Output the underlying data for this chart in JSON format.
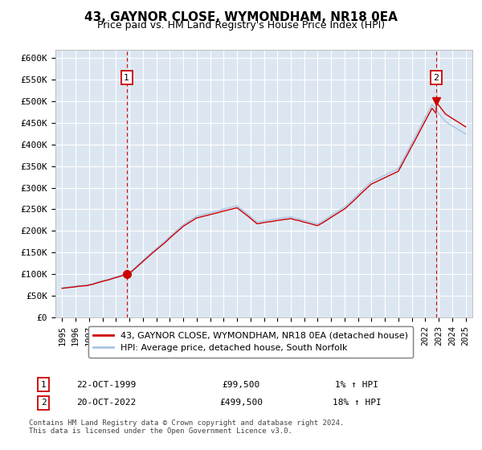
{
  "title": "43, GAYNOR CLOSE, WYMONDHAM, NR18 0EA",
  "subtitle": "Price paid vs. HM Land Registry's House Price Index (HPI)",
  "plot_bg_color": "#dce6f1",
  "ylim": [
    0,
    620000
  ],
  "yticks": [
    0,
    50000,
    100000,
    150000,
    200000,
    250000,
    300000,
    350000,
    400000,
    450000,
    500000,
    550000,
    600000
  ],
  "ytick_labels": [
    "£0",
    "£50K",
    "£100K",
    "£150K",
    "£200K",
    "£250K",
    "£300K",
    "£350K",
    "£400K",
    "£450K",
    "£500K",
    "£550K",
    "£600K"
  ],
  "hpi_color": "#aac4e0",
  "price_color": "#cc0000",
  "legend_house_label": "43, GAYNOR CLOSE, WYMONDHAM, NR18 0EA (detached house)",
  "legend_hpi_label": "HPI: Average price, detached house, South Norfolk",
  "annotation1_num": "1",
  "annotation1_date": "22-OCT-1999",
  "annotation1_price": "£99,500",
  "annotation1_hpi": "1% ↑ HPI",
  "annotation2_num": "2",
  "annotation2_date": "20-OCT-2022",
  "annotation2_price": "£499,500",
  "annotation2_hpi": "18% ↑ HPI",
  "footnote": "Contains HM Land Registry data © Crown copyright and database right 2024.\nThis data is licensed under the Open Government Licence v3.0.",
  "sale1_year": 1999.8,
  "sale1_price": 99500,
  "sale2_year": 2022.8,
  "sale2_price": 499500
}
